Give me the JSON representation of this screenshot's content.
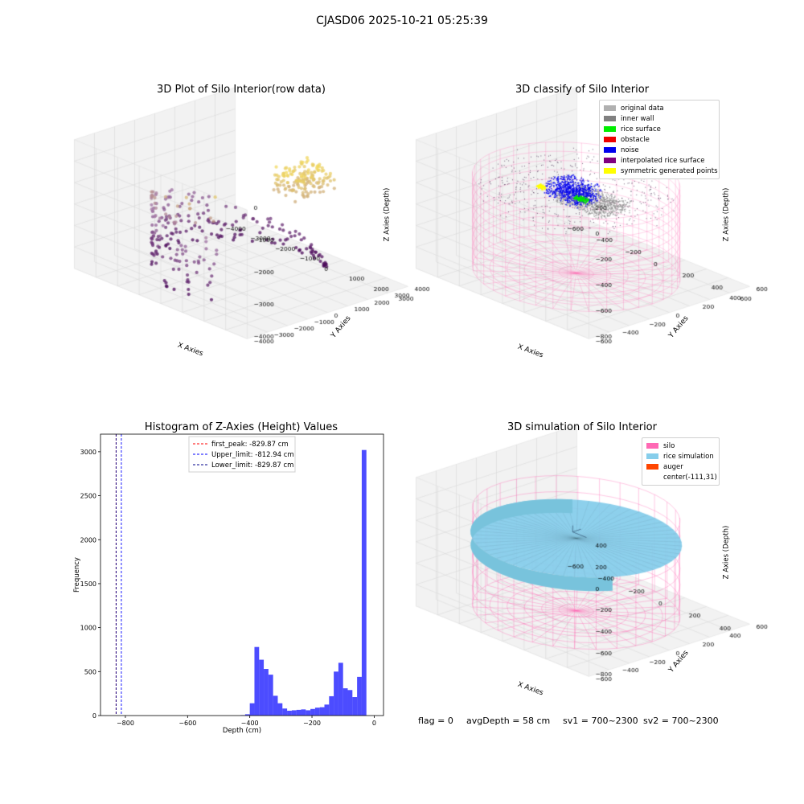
{
  "suptitle": "CJASD06 2025-10-21 05:25:39",
  "panels": {
    "raw": {
      "title": "3D Plot of Silo Interior(row data)",
      "xlabel": "X Axies",
      "ylabel": "Y Axies",
      "zlabel": "Z Axies (Depth)",
      "xticks": [
        "−4000",
        "−3000",
        "−2000",
        "−1000",
        "0",
        "1000",
        "2000",
        "3000"
      ],
      "yticks": [
        "4000",
        "3000",
        "2000",
        "1000",
        "0",
        "−1000",
        "−2000",
        "−3000",
        "−4000"
      ],
      "zticks": [
        "0",
        "−1000",
        "−2000",
        "−3000",
        "−4000"
      ]
    },
    "classify": {
      "title": "3D classify of Silo Interior",
      "xlabel": "X Axies",
      "ylabel": "Y Axies",
      "zlabel": "Z Axies (Depth)",
      "xticks": [
        "−600",
        "−400",
        "−200",
        "0",
        "200",
        "400",
        "600"
      ],
      "yticks": [
        "600",
        "400",
        "200",
        "0",
        "−200",
        "−400",
        "−600"
      ],
      "zticks": [
        "200",
        "0",
        "−200",
        "−400",
        "−600",
        "−800"
      ],
      "legend": [
        {
          "label": "original data",
          "color": "#b0b0b0"
        },
        {
          "label": "inner wall",
          "color": "#808080"
        },
        {
          "label": "rice surface",
          "color": "#00ee00"
        },
        {
          "label": "obstacle",
          "color": "#ee0000"
        },
        {
          "label": "noise",
          "color": "#0000ee"
        },
        {
          "label": "interpolated rice surface",
          "color": "#800080"
        },
        {
          "label": "symmetric generated points",
          "color": "#ffff00"
        }
      ]
    },
    "simulation": {
      "title": "3D simulation of Silo Interior",
      "xlabel": "X Axies",
      "ylabel": "Y Axies",
      "zlabel": "Z Axies (Depth)",
      "xticks": [
        "−600",
        "−400",
        "−200",
        "0",
        "200",
        "400"
      ],
      "yticks": [
        "600",
        "400",
        "200",
        "0",
        "−200",
        "−400",
        "−600"
      ],
      "zticks": [
        "400",
        "200",
        "0",
        "−200",
        "−400",
        "−600",
        "−800"
      ],
      "legend": [
        {
          "label": "silo",
          "color": "#ff69b4"
        },
        {
          "label": "rice simulation",
          "color": "#87ceeb"
        },
        {
          "label": "auger",
          "color": "#ff4500"
        },
        {
          "label": "center(-111,31)",
          "color": ""
        }
      ]
    }
  },
  "chart_data": {
    "type": "bar",
    "title": "Histogram of Z-Axies (Height) Values",
    "xlabel": "Depth (cm)",
    "ylabel": "Frequency",
    "xlim": [
      -880,
      30
    ],
    "ylim": [
      0,
      3200
    ],
    "xticks": [
      -800,
      -600,
      -400,
      -200,
      0
    ],
    "yticks": [
      0,
      500,
      1000,
      1500,
      2000,
      2500,
      3000
    ],
    "bin_width": 15,
    "bin_starts": [
      -430,
      -415,
      -400,
      -385,
      -370,
      -355,
      -340,
      -325,
      -310,
      -295,
      -280,
      -265,
      -250,
      -235,
      -220,
      -205,
      -190,
      -175,
      -160,
      -145,
      -130,
      -115,
      -100,
      -85,
      -70,
      -55,
      -40,
      -25,
      -10
    ],
    "values": [
      5,
      15,
      140,
      780,
      635,
      530,
      465,
      225,
      140,
      80,
      55,
      60,
      65,
      70,
      60,
      75,
      90,
      95,
      125,
      220,
      500,
      600,
      310,
      290,
      210,
      440,
      3020,
      0,
      0
    ],
    "bar_color": "#0000ff",
    "vlines": [
      {
        "label": "first_peak: -829.87 cm",
        "x": -829.87,
        "color": "#ff0000"
      },
      {
        "label": "Upper_limit: -812.94 cm",
        "x": -812.94,
        "color": "#0000ff"
      },
      {
        "label": "Lower_limit: -829.87 cm",
        "x": -829.87,
        "color": "#00008b"
      }
    ],
    "legend_position": "top-center"
  },
  "footer": {
    "flag": "flag = 0",
    "avg": "avgDepth = 58 cm",
    "sv1": "sv1 = 700~2300",
    "sv2": "sv2 = 700~2300"
  }
}
